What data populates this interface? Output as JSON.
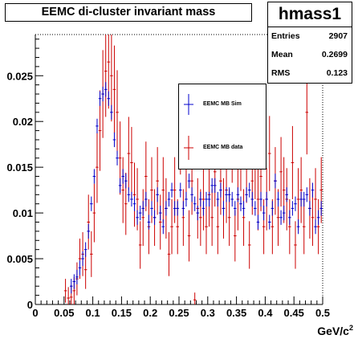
{
  "chart_data": {
    "type": "scatter",
    "title": "EEMC di-cluster invariant mass",
    "xlabel": "GeV/c²",
    "ylabel": "",
    "xlim": [
      0,
      0.5
    ],
    "ylim": [
      0,
      0.0295
    ],
    "x_ticks": [
      "0",
      "0.05",
      "0.1",
      "0.15",
      "0.2",
      "0.25",
      "0.3",
      "0.35",
      "0.4",
      "0.45",
      "0.5"
    ],
    "x_tick_values": [
      0,
      0.05,
      0.1,
      0.15,
      0.2,
      0.25,
      0.3,
      0.35,
      0.4,
      0.45,
      0.5
    ],
    "y_ticks": [
      "0",
      "0.005",
      "0.01",
      "0.015",
      "0.02",
      "0.025"
    ],
    "y_tick_values": [
      0,
      0.005,
      0.01,
      0.015,
      0.02,
      0.025
    ],
    "grid": false,
    "legend_position": "top-center",
    "stats": {
      "name": "hmass1",
      "entries_label": "Entries",
      "entries_value": "2907",
      "mean_label": "Mean",
      "mean_value": "0.2699",
      "rms_label": "RMS",
      "rms_value": "0.123"
    },
    "series": [
      {
        "name": "EEMC MB Sim",
        "color": "#0000cc",
        "x": [
          0.0625,
          0.0675,
          0.0725,
          0.0775,
          0.0825,
          0.0875,
          0.0925,
          0.0975,
          0.1025,
          0.1075,
          0.1125,
          0.1175,
          0.1225,
          0.1275,
          0.1325,
          0.1375,
          0.1425,
          0.1475,
          0.1525,
          0.1575,
          0.1625,
          0.1675,
          0.1725,
          0.1775,
          0.1825,
          0.1875,
          0.1925,
          0.1975,
          0.2025,
          0.2075,
          0.2125,
          0.2175,
          0.2225,
          0.2275,
          0.2325,
          0.2375,
          0.2425,
          0.2475,
          0.2525,
          0.2575,
          0.2625,
          0.2675,
          0.2725,
          0.2775,
          0.2825,
          0.2875,
          0.2925,
          0.2975,
          0.3025,
          0.3075,
          0.3125,
          0.3175,
          0.3225,
          0.3275,
          0.3325,
          0.3375,
          0.3425,
          0.3475,
          0.3525,
          0.3575,
          0.3625,
          0.3675,
          0.3725,
          0.3775,
          0.3825,
          0.3875,
          0.3925,
          0.3975,
          0.4025,
          0.4075,
          0.4125,
          0.4175,
          0.4225,
          0.4275,
          0.4325,
          0.4375,
          0.4425,
          0.4475,
          0.4525,
          0.4575,
          0.4625,
          0.4675,
          0.4725,
          0.4775,
          0.4825,
          0.4875,
          0.4925,
          0.4975
        ],
        "y": [
          0.002,
          0.0025,
          0.003,
          0.004,
          0.005,
          0.006,
          0.008,
          0.011,
          0.014,
          0.0195,
          0.0225,
          0.023,
          0.0235,
          0.0225,
          0.021,
          0.018,
          0.016,
          0.013,
          0.014,
          0.0135,
          0.012,
          0.0115,
          0.011,
          0.0095,
          0.01,
          0.0105,
          0.0115,
          0.009,
          0.0105,
          0.0095,
          0.012,
          0.01,
          0.0085,
          0.0105,
          0.0115,
          0.0125,
          0.0105,
          0.0105,
          0.0125,
          0.0105,
          0.0115,
          0.0135,
          0.012,
          0.011,
          0.01,
          0.0115,
          0.0105,
          0.0115,
          0.0115,
          0.013,
          0.013,
          0.0115,
          0.0125,
          0.0105,
          0.012,
          0.012,
          0.0115,
          0.0105,
          0.012,
          0.011,
          0.0105,
          0.012,
          0.0125,
          0.0115,
          0.0105,
          0.009,
          0.0115,
          0.01,
          0.0115,
          0.009,
          0.0105,
          0.0135,
          0.0115,
          0.0095,
          0.01,
          0.012,
          0.0095,
          0.0105,
          0.011,
          0.0085,
          0.0115,
          0.0115,
          0.012,
          0.0105,
          0.0125,
          0.0085,
          0.0095,
          0.0105
        ],
        "err": [
          0.0008,
          0.0008,
          0.0008,
          0.0008,
          0.0008,
          0.0008,
          0.0008,
          0.0008,
          0.0008,
          0.0008,
          0.0008,
          0.0008,
          0.0008,
          0.0008,
          0.0008,
          0.0008,
          0.0008,
          0.0008,
          0.0008,
          0.0008,
          0.0008,
          0.0008,
          0.0008,
          0.0008,
          0.0008,
          0.0008,
          0.0008,
          0.0008,
          0.0008,
          0.0008,
          0.0008,
          0.0008,
          0.0008,
          0.0008,
          0.0008,
          0.0008,
          0.0008,
          0.0008,
          0.0008,
          0.0008,
          0.0008,
          0.0008,
          0.0008,
          0.0008,
          0.0008,
          0.0008,
          0.0008,
          0.0008,
          0.0008,
          0.0008,
          0.0008,
          0.0008,
          0.0008,
          0.0008,
          0.0008,
          0.0008,
          0.0008,
          0.0008,
          0.0008,
          0.0008,
          0.0008,
          0.0008,
          0.0008,
          0.0008,
          0.0008,
          0.0008,
          0.0008,
          0.0008,
          0.0008,
          0.0008,
          0.0008,
          0.0008,
          0.0008,
          0.0008,
          0.0008,
          0.0008,
          0.0008,
          0.0008,
          0.0008,
          0.0008,
          0.0008,
          0.0008,
          0.0008,
          0.0008,
          0.0008,
          0.0008,
          0.0008,
          0.0008
        ]
      },
      {
        "name": "EEMC MB data",
        "color": "#cc0000",
        "x": [
          0.0525,
          0.0575,
          0.0625,
          0.0675,
          0.0725,
          0.0775,
          0.0825,
          0.0875,
          0.0925,
          0.0975,
          0.1025,
          0.1075,
          0.1125,
          0.1175,
          0.1225,
          0.1275,
          0.1325,
          0.1375,
          0.1425,
          0.1475,
          0.1525,
          0.1575,
          0.1625,
          0.1675,
          0.1725,
          0.1775,
          0.1825,
          0.1875,
          0.1925,
          0.1975,
          0.2025,
          0.2075,
          0.2125,
          0.2175,
          0.2225,
          0.2275,
          0.2325,
          0.2375,
          0.2425,
          0.2475,
          0.2525,
          0.2575,
          0.2625,
          0.2675,
          0.2725,
          0.2775,
          0.2825,
          0.2875,
          0.2925,
          0.2975,
          0.3025,
          0.3075,
          0.3125,
          0.3175,
          0.3225,
          0.3275,
          0.3325,
          0.3375,
          0.3425,
          0.3475,
          0.3525,
          0.3575,
          0.3625,
          0.3675,
          0.3725,
          0.3775,
          0.3825,
          0.3875,
          0.3925,
          0.3975,
          0.4025,
          0.4075,
          0.4125,
          0.4175,
          0.4225,
          0.4275,
          0.4325,
          0.4375,
          0.4425,
          0.4475,
          0.4525,
          0.4575,
          0.4625,
          0.4675,
          0.4725,
          0.4775,
          0.4825,
          0.4875,
          0.4925,
          0.4975
        ],
        "y": [
          0.0015,
          0.0007,
          0.0008,
          0.0015,
          0.0028,
          0.005,
          0.0055,
          0.0038,
          0.009,
          0.0055,
          0.01,
          0.015,
          0.019,
          0.023,
          0.0255,
          0.0265,
          0.025,
          0.0235,
          0.021,
          0.016,
          0.0125,
          0.011,
          0.0165,
          0.0155,
          0.012,
          0.0115,
          0.0065,
          0.0095,
          0.014,
          0.0085,
          0.0125,
          0.0095,
          0.0135,
          0.009,
          0.0125,
          0.0105,
          0.0055,
          0.0085,
          0.0125,
          0.0085,
          0.0185,
          0.0095,
          0.0155,
          0.0075,
          0.0135,
          0.0005,
          0.0105,
          0.0095,
          0.0115,
          0.0085,
          0.012,
          0.0095,
          0.0145,
          0.0085,
          0.0135,
          0.0105,
          0.0125,
          0.0095,
          0.0175,
          0.0075,
          0.0115,
          0.0165,
          0.0095,
          0.015,
          0.0065,
          0.0135,
          0.0155,
          0.0115,
          0.014,
          0.0085,
          0.0115,
          0.0165,
          0.0085,
          0.0135,
          0.0095,
          0.0145,
          0.0125,
          0.0115,
          0.0085,
          0.0155,
          0.0065,
          0.0115,
          0.0125,
          0.0085,
          0.021,
          0.0105,
          0.0095,
          0.0115,
          0.0085,
          0.0125
        ],
        "err": [
          0.0013,
          0.0012,
          0.0013,
          0.0015,
          0.0018,
          0.0022,
          0.0024,
          0.0021,
          0.003,
          0.0025,
          0.0032,
          0.0039,
          0.0044,
          0.0048,
          0.005,
          0.0051,
          0.005,
          0.0048,
          0.0046,
          0.004,
          0.0036,
          0.0034,
          0.004,
          0.0039,
          0.0035,
          0.0034,
          0.0026,
          0.0031,
          0.0038,
          0.003,
          0.0036,
          0.0031,
          0.0037,
          0.003,
          0.0036,
          0.0033,
          0.0024,
          0.003,
          0.0036,
          0.003,
          0.0043,
          0.0031,
          0.004,
          0.0028,
          0.0037,
          0.0008,
          0.0033,
          0.0031,
          0.0034,
          0.003,
          0.0035,
          0.0031,
          0.0038,
          0.003,
          0.0037,
          0.0033,
          0.0036,
          0.0031,
          0.0042,
          0.0028,
          0.0034,
          0.0041,
          0.0031,
          0.0039,
          0.0026,
          0.0037,
          0.004,
          0.0034,
          0.0038,
          0.003,
          0.0034,
          0.0041,
          0.003,
          0.0037,
          0.0031,
          0.0038,
          0.0036,
          0.0034,
          0.003,
          0.004,
          0.0026,
          0.0034,
          0.0036,
          0.003,
          0.0046,
          0.0033,
          0.0031,
          0.0034,
          0.003,
          0.0036
        ]
      }
    ]
  }
}
